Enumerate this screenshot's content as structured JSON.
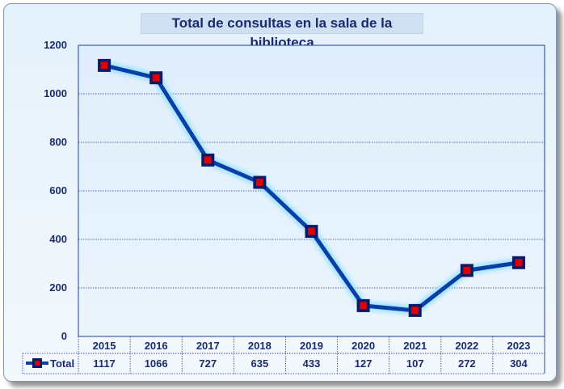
{
  "chart_data": {
    "type": "line",
    "title": "Total de consultas en la sala de la biblioteca",
    "categories": [
      "2015",
      "2016",
      "2017",
      "2018",
      "2019",
      "2020",
      "2021",
      "2022",
      "2023"
    ],
    "series": [
      {
        "name": "Total",
        "values": [
          1117,
          1066,
          727,
          635,
          433,
          127,
          107,
          272,
          304
        ]
      }
    ],
    "xlabel": "",
    "ylabel": "",
    "ylim": [
      0,
      1200
    ],
    "yticks": [
      0,
      200,
      400,
      600,
      800,
      1000,
      1200
    ],
    "grid": true,
    "legend": "data-table-left",
    "colors": {
      "line": "#0a3fa8",
      "marker": "#e00000",
      "marker_border": "#0a1a66",
      "grid": "#1f3f8f",
      "text": "#1a2c6d"
    }
  }
}
